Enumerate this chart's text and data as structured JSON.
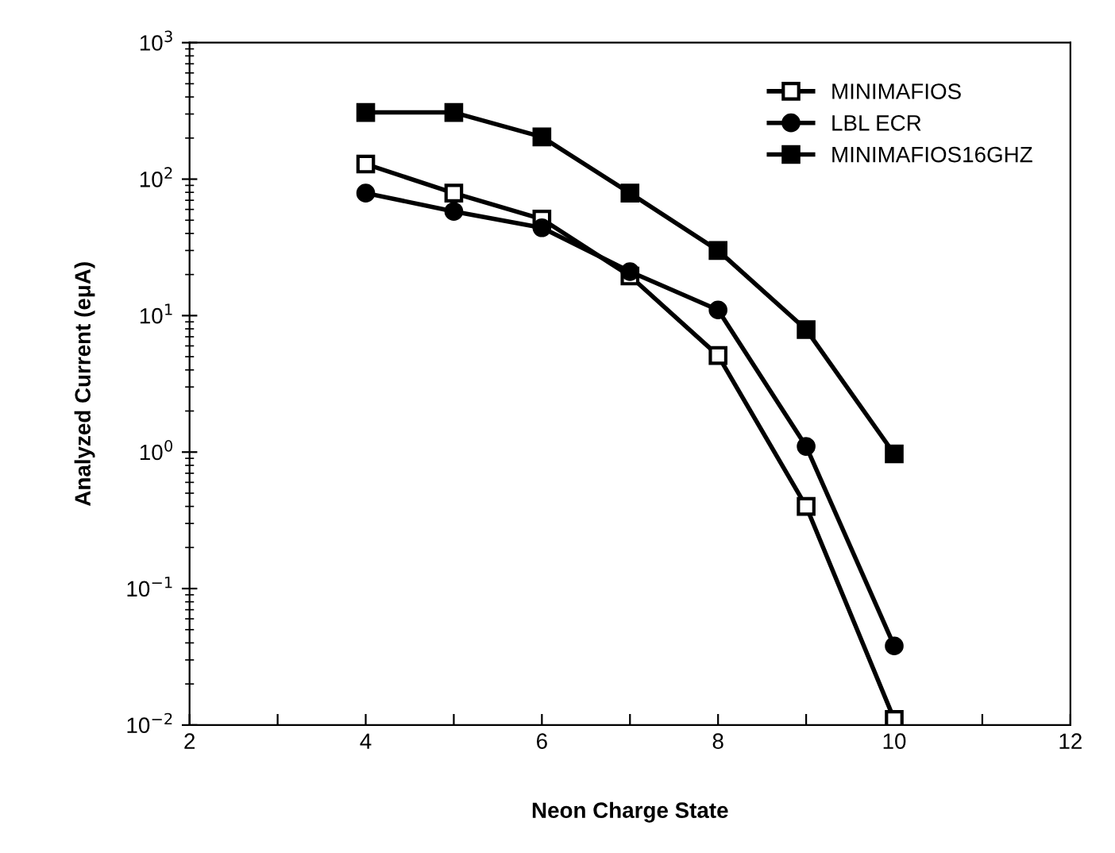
{
  "chart_data": {
    "type": "line",
    "xlabel": "Neon Charge State",
    "ylabel": "Analyzed Current (eμA)",
    "log": "y",
    "xlim": [
      2,
      12
    ],
    "xticks": [
      2,
      {
        "value": 3,
        "label": null
      },
      4,
      {
        "value": 5,
        "label": null
      },
      6,
      {
        "value": 7,
        "label": null
      },
      8,
      {
        "value": 9,
        "label": null
      },
      10,
      {
        "value": 11,
        "label": null
      },
      12
    ],
    "ylim": [
      0.01,
      1000
    ],
    "yticks": [
      {
        "value": 0.01,
        "label": "10$^{−2}$"
      },
      {
        "value": 0.1,
        "label": "10$^{−1}$"
      },
      {
        "value": 1,
        "label": "10$^{0}$"
      },
      {
        "value": 10,
        "label": "10$^{1}$"
      },
      {
        "value": 100,
        "label": "10$^{2}$"
      },
      {
        "value": 1000,
        "label": "10$^{3}$"
      }
    ],
    "x": [
      4,
      5,
      6,
      7,
      8,
      9,
      10
    ],
    "legend": "top right",
    "grid": false,
    "series": [
      {
        "name": "MINIMAFIOS",
        "color": "#000000",
        "marker": "square",
        "values": [
          129,
          79,
          51,
          19.5,
          5.1,
          0.4,
          0.011
        ]
      },
      {
        "name": "LBL ECR",
        "color": "#000000",
        "marker": "circle",
        "values": [
          79,
          58,
          44,
          21,
          11,
          1.1,
          0.038
        ]
      },
      {
        "name": "MINIMAFIOS16GHZ",
        "color": "#000000",
        "marker": "square",
        "values": [
          308,
          308,
          204,
          79,
          30,
          7.9,
          0.97
        ]
      }
    ]
  }
}
